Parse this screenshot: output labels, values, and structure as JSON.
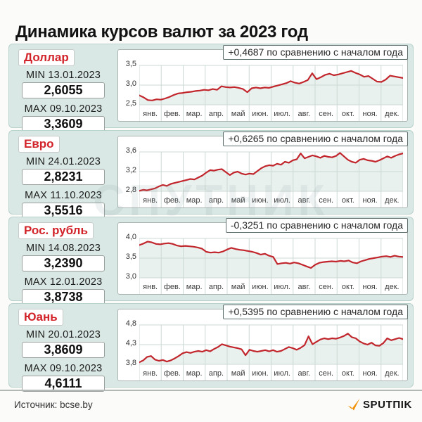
{
  "title": "Динамика курсов валют за 2023 год",
  "source": "Источник: bcse.by",
  "brand": "SPUTΠIK",
  "watermark": "СПУТНИК",
  "months": [
    "янв.",
    "фев.",
    "мар.",
    "апр.",
    "май",
    "июн.",
    "июл.",
    "авг.",
    "сен.",
    "окт.",
    "ноя.",
    "дек."
  ],
  "colors": {
    "line": "#c2262d",
    "accent_red": "#d2232a",
    "panel_bg": "#d9e8e4",
    "panel_border": "#b9d2cc",
    "grid": "#ccd9d4",
    "area_fill": "#e9f1ee",
    "brand_orange": "#f29104"
  },
  "chart_data": [
    {
      "type": "line",
      "currency": "Доллар",
      "min_label": "MIN 13.01.2023",
      "min_value": "2,6055",
      "min": 2.6055,
      "max_label": "MAX 09.10.2023",
      "max_value": "3,3609",
      "max": 3.3609,
      "annotation": "+0,4687 по сравнению с началом года",
      "change_vs_year_start": 0.4687,
      "y_ticks": [
        "3,5",
        "3,0",
        "2,5"
      ],
      "y_top": 3.5,
      "y_bottom": 2.5,
      "values": [
        2.74,
        2.69,
        2.62,
        2.61,
        2.64,
        2.63,
        2.66,
        2.7,
        2.75,
        2.79,
        2.8,
        2.82,
        2.83,
        2.85,
        2.86,
        2.88,
        2.87,
        2.9,
        2.88,
        2.97,
        2.95,
        2.94,
        2.95,
        2.93,
        2.9,
        2.82,
        2.92,
        2.94,
        2.92,
        2.94,
        2.93,
        2.96,
        2.99,
        3.02,
        3.05,
        3.1,
        3.06,
        3.04,
        3.08,
        3.13,
        3.3,
        3.15,
        3.2,
        3.26,
        3.29,
        3.25,
        3.27,
        3.3,
        3.33,
        3.36,
        3.31,
        3.27,
        3.21,
        3.23,
        3.16,
        3.09,
        3.08,
        3.14,
        3.24,
        3.22,
        3.2,
        3.18
      ]
    },
    {
      "type": "line",
      "currency": "Евро",
      "min_label": "MIN 24.01.2023",
      "min_value": "2,8231",
      "min": 2.8231,
      "max_label": "MAX 11.10.2023",
      "max_value": "3,5516",
      "max": 3.5516,
      "annotation": "+0,6265 по сравнению с началом года",
      "change_vs_year_start": 0.6265,
      "y_ticks": [
        "3,6",
        "3,2",
        "2,8"
      ],
      "y_top": 3.6,
      "y_bottom": 2.8,
      "values": [
        2.81,
        2.83,
        2.82,
        2.84,
        2.86,
        2.9,
        2.93,
        2.91,
        2.95,
        2.97,
        2.99,
        3.01,
        3.03,
        3.05,
        3.04,
        3.08,
        3.12,
        3.18,
        3.23,
        3.22,
        3.24,
        3.25,
        3.19,
        3.13,
        3.18,
        3.2,
        3.16,
        3.14,
        3.16,
        3.15,
        3.21,
        3.27,
        3.31,
        3.33,
        3.32,
        3.36,
        3.34,
        3.4,
        3.38,
        3.43,
        3.45,
        3.57,
        3.47,
        3.5,
        3.53,
        3.51,
        3.48,
        3.52,
        3.5,
        3.49,
        3.52,
        3.58,
        3.51,
        3.44,
        3.4,
        3.38,
        3.44,
        3.46,
        3.43,
        3.42,
        3.4,
        3.43,
        3.47,
        3.51,
        3.48,
        3.52,
        3.55,
        3.57
      ]
    },
    {
      "type": "line",
      "currency": "Рос. рубль",
      "min_label": "MIN 14.08.2023",
      "min_value": "3,2390",
      "min": 3.239,
      "max_label": "MAX 12.01.2023",
      "max_value": "3,8738",
      "max": 3.8738,
      "annotation": "-0,3251 по сравнению с началом года",
      "change_vs_year_start": -0.3251,
      "y_ticks": [
        "4,0",
        "3,5",
        "3,0"
      ],
      "y_top": 4.0,
      "y_bottom": 3.0,
      "values": [
        3.83,
        3.87,
        3.92,
        3.9,
        3.86,
        3.85,
        3.87,
        3.88,
        3.86,
        3.82,
        3.8,
        3.81,
        3.8,
        3.79,
        3.77,
        3.74,
        3.66,
        3.64,
        3.65,
        3.64,
        3.67,
        3.72,
        3.76,
        3.73,
        3.71,
        3.7,
        3.68,
        3.66,
        3.63,
        3.59,
        3.61,
        3.56,
        3.53,
        3.35,
        3.37,
        3.38,
        3.36,
        3.39,
        3.37,
        3.33,
        3.29,
        3.25,
        3.33,
        3.38,
        3.4,
        3.41,
        3.42,
        3.41,
        3.43,
        3.42,
        3.44,
        3.39,
        3.37,
        3.42,
        3.45,
        3.48,
        3.5,
        3.52,
        3.54,
        3.55,
        3.53,
        3.56,
        3.54,
        3.53
      ]
    },
    {
      "type": "line",
      "currency": "Юань",
      "min_label": "MIN 20.01.2023",
      "min_value": "3,8609",
      "min": 3.8609,
      "max_label": "MAX 09.10.2023",
      "max_value": "4,6111",
      "max": 4.6111,
      "annotation": "+0,5395 по сравнению с началом года",
      "change_vs_year_start": 0.5395,
      "y_ticks": [
        "4,8",
        "4,3",
        "3,8"
      ],
      "y_top": 4.8,
      "y_bottom": 3.8,
      "values": [
        3.85,
        3.9,
        3.99,
        4.01,
        3.92,
        3.89,
        3.91,
        3.87,
        3.9,
        3.95,
        4.01,
        4.08,
        4.11,
        4.09,
        4.12,
        4.14,
        4.12,
        4.16,
        4.13,
        4.19,
        4.24,
        4.31,
        4.28,
        4.25,
        4.23,
        4.21,
        4.18,
        4.03,
        4.17,
        4.14,
        4.12,
        4.14,
        4.16,
        4.13,
        4.16,
        4.12,
        4.14,
        4.19,
        4.24,
        4.21,
        4.17,
        4.22,
        4.29,
        4.51,
        4.31,
        4.37,
        4.43,
        4.46,
        4.44,
        4.46,
        4.45,
        4.48,
        4.52,
        4.58,
        4.49,
        4.46,
        4.38,
        4.33,
        4.3,
        4.35,
        4.28,
        4.27,
        4.34,
        4.46,
        4.41,
        4.44,
        4.47,
        4.44
      ]
    }
  ]
}
